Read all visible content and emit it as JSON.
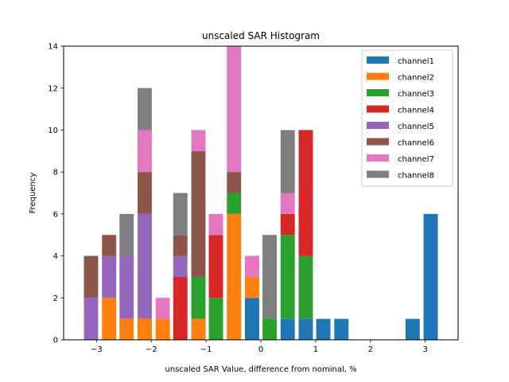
{
  "chart_data": {
    "type": "bar",
    "stacked": true,
    "title": "unscaled SAR Histogram",
    "xlabel": "unscaled SAR Value, difference from nominal, %",
    "ylabel": "Frequency",
    "xlim": [
      -3.6,
      3.6
    ],
    "ylim": [
      0,
      14
    ],
    "xticks": [
      -3,
      -2,
      -1,
      0,
      1,
      2,
      3
    ],
    "xtick_labels": [
      "−3",
      "−2",
      "−1",
      "0",
      "1",
      "2",
      "3"
    ],
    "yticks": [
      0,
      2,
      4,
      6,
      8,
      10,
      12,
      14
    ],
    "ytick_labels": [
      "0",
      "2",
      "4",
      "6",
      "8",
      "10",
      "12",
      "14"
    ],
    "bin_width": 0.26,
    "x": [
      -3.1,
      -2.77,
      -2.45,
      -2.12,
      -1.79,
      -1.47,
      -1.14,
      -0.82,
      -0.49,
      -0.16,
      0.16,
      0.49,
      0.82,
      1.14,
      1.47,
      1.79,
      2.12,
      2.45,
      2.77,
      3.1
    ],
    "grid": false,
    "legend_position": "top-right",
    "series": [
      {
        "name": "channel1",
        "color": "#1f77b4",
        "values": [
          0,
          0,
          0,
          0,
          0,
          0,
          0,
          0,
          0,
          2,
          0,
          1,
          1,
          1,
          1,
          0,
          0,
          0,
          1,
          6
        ]
      },
      {
        "name": "channel2",
        "color": "#ff7f0e",
        "values": [
          0,
          2,
          1,
          1,
          1,
          0,
          1,
          0,
          6,
          1,
          0,
          0,
          0,
          0,
          0,
          0,
          0,
          0,
          0,
          0
        ]
      },
      {
        "name": "channel3",
        "color": "#2ca02c",
        "values": [
          0,
          0,
          0,
          0,
          0,
          0,
          2,
          2,
          1,
          0,
          1,
          4,
          3,
          0,
          0,
          0,
          0,
          0,
          0,
          0
        ]
      },
      {
        "name": "channel4",
        "color": "#d62728",
        "values": [
          0,
          0,
          0,
          0,
          0,
          3,
          0,
          3,
          0,
          0,
          0,
          1,
          6,
          0,
          0,
          0,
          0,
          0,
          0,
          0
        ]
      },
      {
        "name": "channel5",
        "color": "#9467bd",
        "values": [
          2,
          2,
          3,
          5,
          0,
          1,
          0,
          0,
          0,
          0,
          0,
          0,
          0,
          0,
          0,
          0,
          0,
          0,
          0,
          0
        ]
      },
      {
        "name": "channel6",
        "color": "#8c564b",
        "values": [
          2,
          1,
          0,
          2,
          0,
          1,
          6,
          0,
          1,
          0,
          0,
          0,
          0,
          0,
          0,
          0,
          0,
          0,
          0,
          0
        ]
      },
      {
        "name": "channel7",
        "color": "#e377c2",
        "values": [
          0,
          0,
          0,
          2,
          1,
          0,
          1,
          1,
          6,
          1,
          0,
          1,
          0,
          0,
          0,
          0,
          0,
          0,
          0,
          0
        ]
      },
      {
        "name": "channel8",
        "color": "#7f7f7f",
        "values": [
          0,
          0,
          2,
          2,
          0,
          2,
          0,
          0,
          0,
          0,
          4,
          3,
          0,
          0,
          0,
          0,
          0,
          0,
          0,
          0
        ]
      }
    ]
  }
}
